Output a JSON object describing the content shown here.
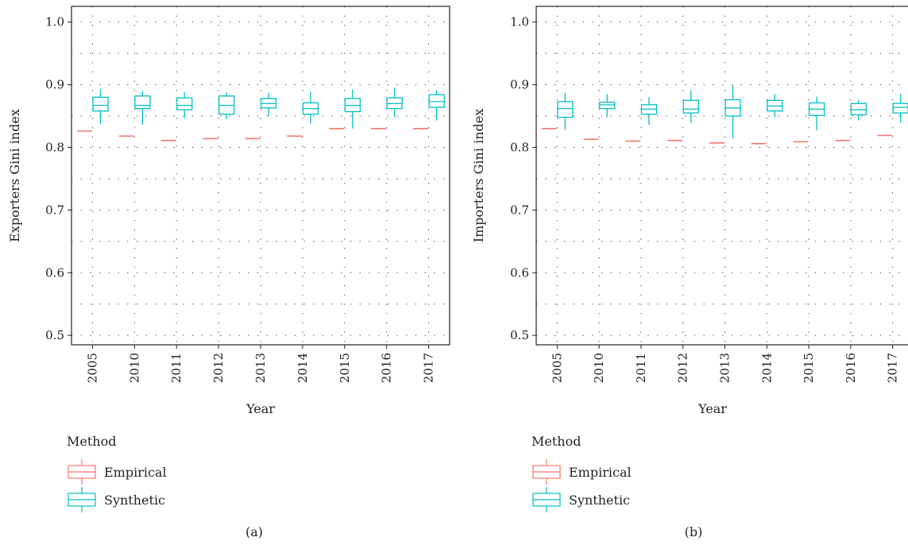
{
  "chart_data": [
    {
      "type": "boxplot",
      "panel_label": "(a)",
      "xlabel": "Year",
      "ylabel": "Exporters Gini index",
      "ylim": [
        0.485,
        1.025
      ],
      "yticks": [
        0.5,
        0.6,
        0.7,
        0.8,
        0.9,
        1.0
      ],
      "ytick_labels": [
        "0.5",
        "0.6",
        "0.7",
        "0.8",
        "0.9",
        "1.0"
      ],
      "grid": true,
      "categories": [
        "2005",
        "2010",
        "2011",
        "2012",
        "2013",
        "2014",
        "2015",
        "2016",
        "2017"
      ],
      "legend": {
        "title": "Method",
        "entries": [
          "Empirical",
          "Synthetic"
        ],
        "position": "bottom"
      },
      "series": [
        {
          "name": "Empirical",
          "color": "#F8766D",
          "values": [
            0.826,
            0.818,
            0.811,
            0.814,
            0.814,
            0.818,
            0.83,
            0.83,
            0.83
          ]
        },
        {
          "name": "Synthetic",
          "color": "#00BFC4",
          "boxes": [
            {
              "min": 0.837,
              "q1": 0.858,
              "median": 0.867,
              "q3": 0.88,
              "max": 0.893
            },
            {
              "min": 0.836,
              "q1": 0.862,
              "median": 0.867,
              "q3": 0.882,
              "max": 0.89
            },
            {
              "min": 0.847,
              "q1": 0.86,
              "median": 0.867,
              "q3": 0.879,
              "max": 0.888
            },
            {
              "min": 0.845,
              "q1": 0.853,
              "median": 0.867,
              "q3": 0.882,
              "max": 0.888
            },
            {
              "min": 0.85,
              "q1": 0.863,
              "median": 0.87,
              "q3": 0.878,
              "max": 0.887
            },
            {
              "min": 0.838,
              "q1": 0.853,
              "median": 0.862,
              "q3": 0.871,
              "max": 0.889
            },
            {
              "min": 0.83,
              "q1": 0.857,
              "median": 0.867,
              "q3": 0.878,
              "max": 0.892
            },
            {
              "min": 0.848,
              "q1": 0.862,
              "median": 0.87,
              "q3": 0.879,
              "max": 0.895
            },
            {
              "min": 0.843,
              "q1": 0.864,
              "median": 0.873,
              "q3": 0.884,
              "max": 0.891
            }
          ]
        }
      ]
    },
    {
      "type": "boxplot",
      "panel_label": "(b)",
      "xlabel": "Year",
      "ylabel": "Importers Gini index",
      "ylim": [
        0.485,
        1.025
      ],
      "yticks": [
        0.5,
        0.6,
        0.7,
        0.8,
        0.9,
        1.0
      ],
      "ytick_labels": [
        "0.5",
        "0.6",
        "0.7",
        "0.8",
        "0.9",
        "1.0"
      ],
      "grid": true,
      "categories": [
        "2005",
        "2010",
        "2011",
        "2012",
        "2013",
        "2014",
        "2015",
        "2016",
        "2017"
      ],
      "legend": {
        "title": "Method",
        "entries": [
          "Empirical",
          "Synthetic"
        ],
        "position": "bottom"
      },
      "series": [
        {
          "name": "Empirical",
          "color": "#F8766D",
          "values": [
            0.83,
            0.813,
            0.81,
            0.811,
            0.807,
            0.806,
            0.809,
            0.811,
            0.819
          ]
        },
        {
          "name": "Synthetic",
          "color": "#00BFC4",
          "boxes": [
            {
              "min": 0.828,
              "q1": 0.848,
              "median": 0.862,
              "q3": 0.873,
              "max": 0.887
            },
            {
              "min": 0.848,
              "q1": 0.862,
              "median": 0.868,
              "q3": 0.872,
              "max": 0.885
            },
            {
              "min": 0.836,
              "q1": 0.853,
              "median": 0.861,
              "q3": 0.868,
              "max": 0.88
            },
            {
              "min": 0.839,
              "q1": 0.855,
              "median": 0.861,
              "q3": 0.875,
              "max": 0.891
            },
            {
              "min": 0.814,
              "q1": 0.85,
              "median": 0.863,
              "q3": 0.876,
              "max": 0.899
            },
            {
              "min": 0.848,
              "q1": 0.858,
              "median": 0.866,
              "q3": 0.875,
              "max": 0.885
            },
            {
              "min": 0.827,
              "q1": 0.851,
              "median": 0.861,
              "q3": 0.871,
              "max": 0.881
            },
            {
              "min": 0.843,
              "q1": 0.852,
              "median": 0.86,
              "q3": 0.87,
              "max": 0.876
            },
            {
              "min": 0.84,
              "q1": 0.855,
              "median": 0.864,
              "q3": 0.87,
              "max": 0.885
            }
          ]
        }
      ]
    }
  ]
}
